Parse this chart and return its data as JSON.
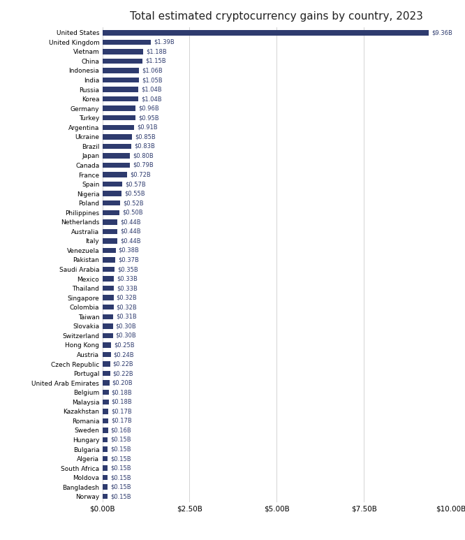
{
  "title": "Total estimated cryptocurrency gains by country, 2023",
  "bar_color": "#2e3b6e",
  "label_color": "#2e3b6e",
  "background_color": "#ffffff",
  "grid_color": "#cccccc",
  "xlim": [
    0,
    10
  ],
  "xtick_labels": [
    "$0.00B",
    "$2.50B",
    "$5.00B",
    "$7.50B",
    "$10.00B"
  ],
  "xtick_values": [
    0,
    2.5,
    5.0,
    7.5,
    10.0
  ],
  "countries": [
    "United States",
    "United Kingdom",
    "Vietnam",
    "China",
    "Indonesia",
    "India",
    "Russia",
    "Korea",
    "Germany",
    "Turkey",
    "Argentina",
    "Ukraine",
    "Brazil",
    "Japan",
    "Canada",
    "France",
    "Spain",
    "Nigeria",
    "Poland",
    "Philippines",
    "Netherlands",
    "Australia",
    "Italy",
    "Venezuela",
    "Pakistan",
    "Saudi Arabia",
    "Mexico",
    "Thailand",
    "Singapore",
    "Colombia",
    "Taiwan",
    "Slovakia",
    "Switzerland",
    "Hong Kong",
    "Austria",
    "Czech Republic",
    "Portugal",
    "United Arab Emirates",
    "Belgium",
    "Malaysia",
    "Kazakhstan",
    "Romania",
    "Sweden",
    "Hungary",
    "Bulgaria",
    "Algeria",
    "South Africa",
    "Moldova",
    "Bangladesh",
    "Norway"
  ],
  "values": [
    9.36,
    1.39,
    1.18,
    1.15,
    1.06,
    1.05,
    1.04,
    1.04,
    0.96,
    0.95,
    0.91,
    0.85,
    0.83,
    0.8,
    0.79,
    0.72,
    0.57,
    0.55,
    0.52,
    0.5,
    0.44,
    0.44,
    0.44,
    0.38,
    0.37,
    0.35,
    0.33,
    0.33,
    0.32,
    0.32,
    0.31,
    0.3,
    0.3,
    0.25,
    0.24,
    0.22,
    0.22,
    0.2,
    0.18,
    0.18,
    0.17,
    0.17,
    0.16,
    0.15,
    0.15,
    0.15,
    0.15,
    0.15,
    0.15,
    0.15
  ],
  "value_labels": [
    "$9.36B",
    "$1.39B",
    "$1.18B",
    "$1.15B",
    "$1.06B",
    "$1.05B",
    "$1.04B",
    "$1.04B",
    "$0.96B",
    "$0.95B",
    "$0.91B",
    "$0.85B",
    "$0.83B",
    "$0.80B",
    "$0.79B",
    "$0.72B",
    "$0.57B",
    "$0.55B",
    "$0.52B",
    "$0.50B",
    "$0.44B",
    "$0.44B",
    "$0.44B",
    "$0.38B",
    "$0.37B",
    "$0.35B",
    "$0.33B",
    "$0.33B",
    "$0.32B",
    "$0.32B",
    "$0.31B",
    "$0.30B",
    "$0.30B",
    "$0.25B",
    "$0.24B",
    "$0.22B",
    "$0.22B",
    "$0.20B",
    "$0.18B",
    "$0.18B",
    "$0.17B",
    "$0.17B",
    "$0.16B",
    "$0.15B",
    "$0.15B",
    "$0.15B",
    "$0.15B",
    "$0.15B",
    "$0.15B",
    "$0.15B"
  ]
}
